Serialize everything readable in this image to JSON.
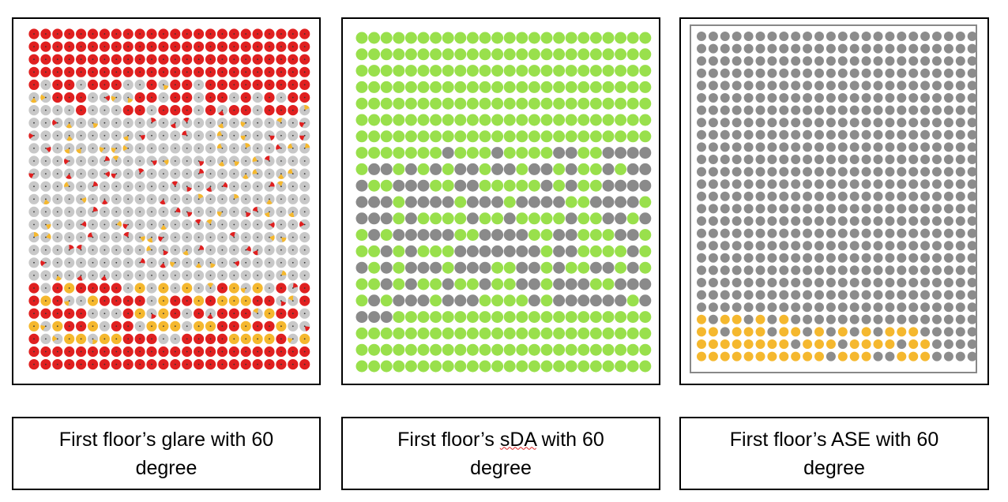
{
  "panels": [
    {
      "id": "glare",
      "caption_line1": "First floor’s glare with 60",
      "caption_line2": "degree",
      "grid": {
        "cols": 24,
        "rows": 27
      },
      "legend_colors": {
        "high": "#e02020",
        "medium": "#f5b82e",
        "low": "#c8c8c8"
      }
    },
    {
      "id": "sda",
      "caption_line1_a": "First floor’s ",
      "caption_line1_b": "sDA",
      "caption_line1_c": " with 60",
      "caption_line2": "degree",
      "grid": {
        "cols": 24,
        "rows": 21
      },
      "legend_colors": {
        "pass": "#99e04c",
        "fail": "#8a8a8a"
      }
    },
    {
      "id": "ase",
      "caption_line1": "First floor’s ASE with 60",
      "caption_line2": "degree",
      "grid": {
        "cols": 24,
        "rows": 27
      },
      "legend_colors": {
        "exceed": "#f5b82e",
        "ok": "#8c8c8c"
      }
    }
  ]
}
